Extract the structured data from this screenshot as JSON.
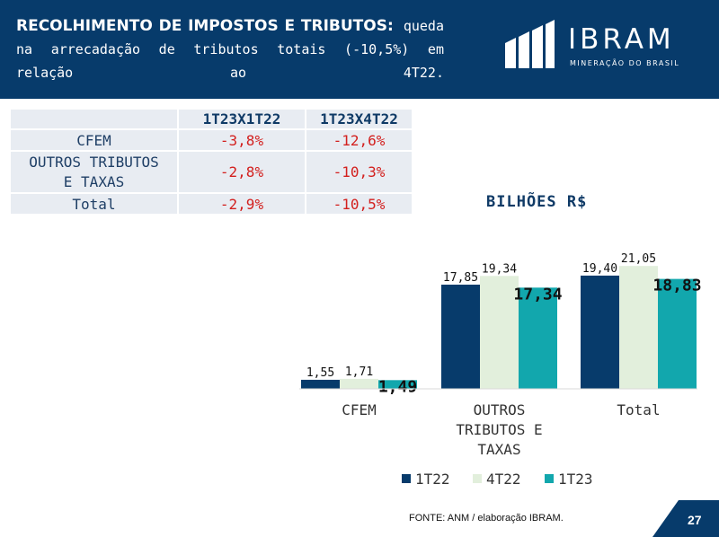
{
  "header": {
    "title_bold": "RECOLHIMENTO DE IMPOSTOS E TRIBUTOS:",
    "title_rest": "queda na arrecadação de tributos totais (-10,5%) em relação ao 4T22."
  },
  "logo": {
    "name": "IBRAM",
    "tagline": "MINERAÇÃO DO BRASIL"
  },
  "table": {
    "headers": [
      "",
      "1T23X1T22",
      "1T23X4T22"
    ],
    "rows": [
      {
        "label": "CFEM",
        "v1": "-3,8%",
        "v2": "-12,6%"
      },
      {
        "label_line1": "OUTROS TRIBUTOS",
        "label_line2": "E TAXAS",
        "v1": "-2,8%",
        "v2": "-10,3%"
      },
      {
        "label": "Total",
        "v1": "-2,9%",
        "v2": "-10,5%"
      }
    ]
  },
  "chart_data": {
    "type": "bar",
    "title": "BILHÕES R$",
    "categories": [
      "CFEM",
      "OUTROS TRIBUTOS E TAXAS",
      "Total"
    ],
    "category_lines": [
      [
        "CFEM"
      ],
      [
        "OUTROS",
        "TRIBUTOS E",
        "TAXAS"
      ],
      [
        "Total"
      ]
    ],
    "series": [
      {
        "name": "1T22",
        "values": [
          1.55,
          17.85,
          19.4
        ],
        "labels": [
          "1,55",
          "17,85",
          "19,40"
        ],
        "color": "#073b6b"
      },
      {
        "name": "4T22",
        "values": [
          1.71,
          19.34,
          21.05
        ],
        "labels": [
          "1,71",
          "19,34",
          "21,05"
        ],
        "color": "#e2efdc"
      },
      {
        "name": "1T23",
        "values": [
          1.49,
          17.34,
          18.83
        ],
        "labels": [
          "1,49",
          "17,34",
          "18,83"
        ],
        "color": "#12a7ad"
      }
    ],
    "legend_position": "bottom",
    "grid": false
  },
  "footer": {
    "source": "FONTE: ANM / elaboração IBRAM.",
    "page": "27"
  }
}
